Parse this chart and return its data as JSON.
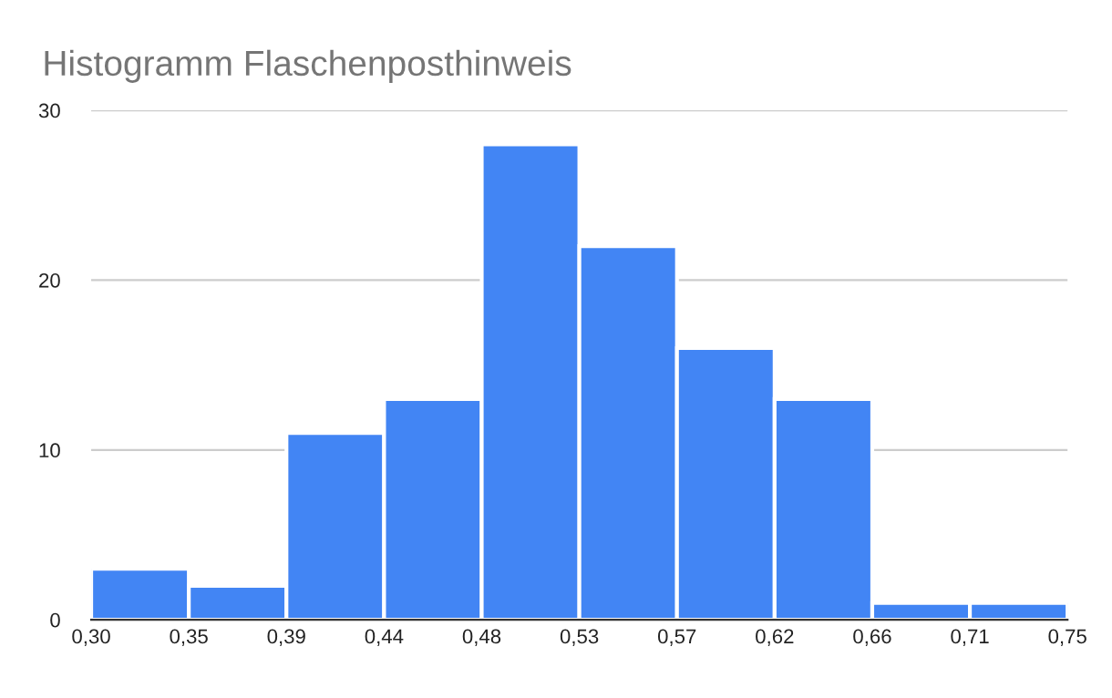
{
  "chart_data": {
    "type": "histogram",
    "title": "Histogramm Flaschenposthinweis",
    "bins": [
      0.3,
      0.345,
      0.39,
      0.435,
      0.48,
      0.525,
      0.57,
      0.615,
      0.66,
      0.705,
      0.75
    ],
    "values": [
      3,
      2,
      11,
      13,
      28,
      22,
      16,
      13,
      1,
      1
    ],
    "color": "#4285f4",
    "xlim": [
      0.3,
      0.75
    ],
    "xticks": [
      {
        "value": 0.3,
        "label": "0,30"
      },
      {
        "value": 0.345,
        "label": "0,35"
      },
      {
        "value": 0.39,
        "label": "0,39"
      },
      {
        "value": 0.435,
        "label": "0,44"
      },
      {
        "value": 0.48,
        "label": "0,48"
      },
      {
        "value": 0.525,
        "label": "0,53"
      },
      {
        "value": 0.57,
        "label": "0,57"
      },
      {
        "value": 0.615,
        "label": "0,62"
      },
      {
        "value": 0.66,
        "label": "0,66"
      },
      {
        "value": 0.705,
        "label": "0,71"
      },
      {
        "value": 0.75,
        "label": "0,75"
      }
    ],
    "ylim": [
      0,
      30
    ],
    "yticks": [
      0,
      10,
      20,
      30
    ],
    "grid": "y"
  }
}
